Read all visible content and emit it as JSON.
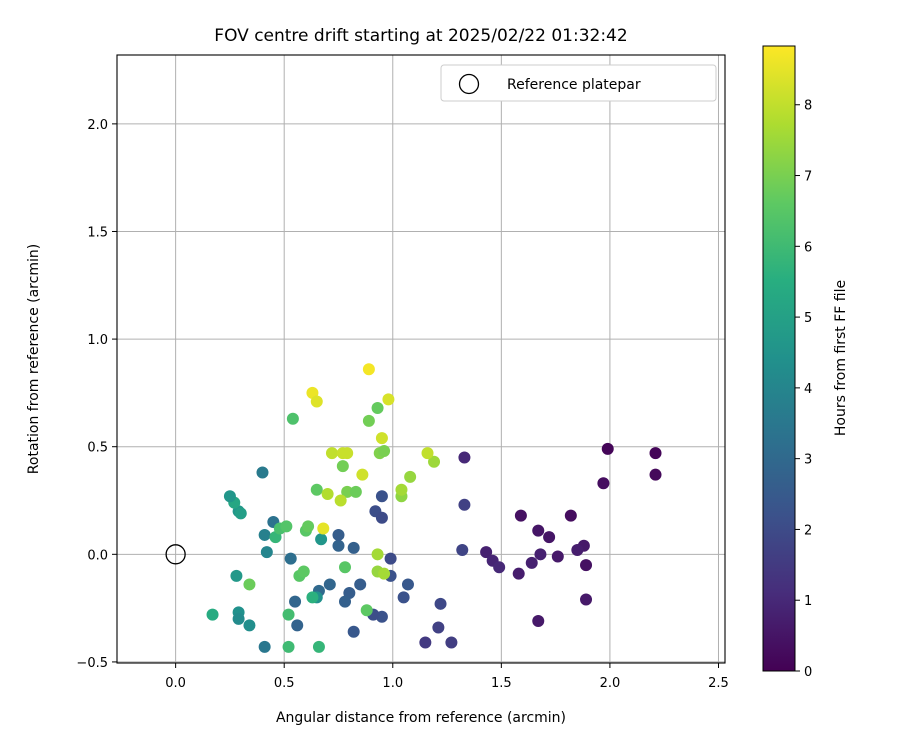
{
  "chart_data": {
    "type": "scatter",
    "title": "FOV centre drift starting at 2025/02/22 01:32:42",
    "xlabel": "Angular distance from reference (arcmin)",
    "ylabel": "Rotation from reference (arcmin)",
    "xlim": [
      -0.27,
      2.53
    ],
    "ylim": [
      -0.505,
      2.32
    ],
    "xticks": [
      0.0,
      0.5,
      1.0,
      1.5,
      2.0,
      2.5
    ],
    "xtick_labels": [
      "0.0",
      "0.5",
      "1.0",
      "1.5",
      "2.0",
      "2.5"
    ],
    "yticks": [
      -0.5,
      0.0,
      0.5,
      1.0,
      1.5,
      2.0
    ],
    "ytick_labels": [
      "−0.5",
      "0.0",
      "0.5",
      "1.0",
      "1.5",
      "2.0"
    ],
    "grid": true,
    "legend": {
      "placement": "top-right",
      "entries": [
        {
          "label": "Reference platepar",
          "marker": "open-circle"
        }
      ]
    },
    "reference_point": {
      "x": 0.0,
      "y": 0.0
    },
    "colorbar": {
      "label": "Hours from first FF file",
      "colormap": "viridis",
      "range": [
        0,
        8.83
      ],
      "ticks": [
        0,
        1,
        2,
        3,
        4,
        5,
        6,
        7,
        8
      ],
      "tick_labels": [
        "0",
        "1",
        "2",
        "3",
        "4",
        "5",
        "6",
        "7",
        "8"
      ]
    },
    "points": [
      {
        "x": 1.99,
        "y": 0.49,
        "c": 0.1
      },
      {
        "x": 2.21,
        "y": 0.47,
        "c": 0.1
      },
      {
        "x": 2.21,
        "y": 0.37,
        "c": 0.2
      },
      {
        "x": 1.97,
        "y": 0.33,
        "c": 0.3
      },
      {
        "x": 1.59,
        "y": 0.18,
        "c": 0.4
      },
      {
        "x": 1.82,
        "y": 0.18,
        "c": 0.3
      },
      {
        "x": 1.67,
        "y": 0.11,
        "c": 0.5
      },
      {
        "x": 1.72,
        "y": 0.08,
        "c": 0.5
      },
      {
        "x": 1.88,
        "y": 0.04,
        "c": 0.6
      },
      {
        "x": 1.85,
        "y": 0.02,
        "c": 0.7
      },
      {
        "x": 1.68,
        "y": 0.0,
        "c": 0.8
      },
      {
        "x": 1.76,
        "y": -0.01,
        "c": 0.6
      },
      {
        "x": 1.89,
        "y": -0.05,
        "c": 0.4
      },
      {
        "x": 1.64,
        "y": -0.04,
        "c": 0.8
      },
      {
        "x": 1.58,
        "y": -0.09,
        "c": 0.7
      },
      {
        "x": 1.89,
        "y": -0.21,
        "c": 0.6
      },
      {
        "x": 1.67,
        "y": -0.31,
        "c": 0.6
      },
      {
        "x": 1.43,
        "y": 0.01,
        "c": 0.8
      },
      {
        "x": 1.46,
        "y": -0.03,
        "c": 0.9
      },
      {
        "x": 1.49,
        "y": -0.06,
        "c": 1.0
      },
      {
        "x": 1.33,
        "y": 0.45,
        "c": 1.0
      },
      {
        "x": 1.33,
        "y": 0.23,
        "c": 1.7
      },
      {
        "x": 1.32,
        "y": 0.02,
        "c": 1.8
      },
      {
        "x": 1.22,
        "y": -0.23,
        "c": 1.9
      },
      {
        "x": 1.21,
        "y": -0.34,
        "c": 1.7
      },
      {
        "x": 1.15,
        "y": -0.41,
        "c": 1.5
      },
      {
        "x": 1.27,
        "y": -0.41,
        "c": 1.6
      },
      {
        "x": 1.07,
        "y": -0.14,
        "c": 2.4
      },
      {
        "x": 1.05,
        "y": -0.2,
        "c": 2.2
      },
      {
        "x": 0.99,
        "y": -0.1,
        "c": 2.2
      },
      {
        "x": 0.99,
        "y": -0.02,
        "c": 2.0
      },
      {
        "x": 0.95,
        "y": 0.27,
        "c": 2.2
      },
      {
        "x": 0.92,
        "y": 0.2,
        "c": 2.1
      },
      {
        "x": 0.95,
        "y": 0.17,
        "c": 2.0
      },
      {
        "x": 0.95,
        "y": -0.29,
        "c": 2.2
      },
      {
        "x": 0.91,
        "y": -0.28,
        "c": 2.1
      },
      {
        "x": 0.85,
        "y": -0.14,
        "c": 2.6
      },
      {
        "x": 0.82,
        "y": 0.03,
        "c": 2.7
      },
      {
        "x": 0.8,
        "y": -0.18,
        "c": 2.6
      },
      {
        "x": 0.82,
        "y": -0.36,
        "c": 2.4
      },
      {
        "x": 0.78,
        "y": -0.22,
        "c": 2.7
      },
      {
        "x": 0.75,
        "y": 0.04,
        "c": 2.8
      },
      {
        "x": 0.75,
        "y": 0.09,
        "c": 2.6
      },
      {
        "x": 0.71,
        "y": -0.14,
        "c": 2.9
      },
      {
        "x": 0.66,
        "y": -0.17,
        "c": 3.0
      },
      {
        "x": 0.55,
        "y": -0.22,
        "c": 2.9
      },
      {
        "x": 0.56,
        "y": -0.33,
        "c": 2.8
      },
      {
        "x": 0.53,
        "y": -0.02,
        "c": 3.2
      },
      {
        "x": 0.4,
        "y": 0.38,
        "c": 3.6
      },
      {
        "x": 0.45,
        "y": 0.15,
        "c": 3.3
      },
      {
        "x": 0.41,
        "y": 0.09,
        "c": 3.8
      },
      {
        "x": 0.42,
        "y": 0.01,
        "c": 4.0
      },
      {
        "x": 0.41,
        "y": -0.43,
        "c": 3.5
      },
      {
        "x": 0.34,
        "y": -0.33,
        "c": 4.3
      },
      {
        "x": 0.29,
        "y": -0.27,
        "c": 4.4
      },
      {
        "x": 0.29,
        "y": -0.3,
        "c": 4.2
      },
      {
        "x": 0.28,
        "y": -0.1,
        "c": 4.7
      },
      {
        "x": 0.29,
        "y": 0.2,
        "c": 4.6
      },
      {
        "x": 0.3,
        "y": 0.19,
        "c": 4.9
      },
      {
        "x": 0.27,
        "y": 0.24,
        "c": 5.2
      },
      {
        "x": 0.25,
        "y": 0.27,
        "c": 4.6
      },
      {
        "x": 0.17,
        "y": -0.28,
        "c": 5.4
      },
      {
        "x": 0.67,
        "y": 0.07,
        "c": 4.6
      },
      {
        "x": 0.65,
        "y": -0.2,
        "c": 4.4
      },
      {
        "x": 0.63,
        "y": -0.2,
        "c": 5.6
      },
      {
        "x": 0.66,
        "y": -0.43,
        "c": 5.8
      },
      {
        "x": 0.52,
        "y": -0.43,
        "c": 6.0
      },
      {
        "x": 0.52,
        "y": -0.28,
        "c": 6.1
      },
      {
        "x": 0.54,
        "y": 0.63,
        "c": 6.3
      },
      {
        "x": 0.46,
        "y": 0.08,
        "c": 5.8
      },
      {
        "x": 0.48,
        "y": 0.12,
        "c": 6.2
      },
      {
        "x": 0.51,
        "y": 0.13,
        "c": 6.4
      },
      {
        "x": 0.57,
        "y": -0.1,
        "c": 6.5
      },
      {
        "x": 0.59,
        "y": -0.08,
        "c": 6.6
      },
      {
        "x": 0.6,
        "y": 0.11,
        "c": 6.5
      },
      {
        "x": 0.61,
        "y": 0.13,
        "c": 6.7
      },
      {
        "x": 0.65,
        "y": 0.3,
        "c": 6.6
      },
      {
        "x": 0.34,
        "y": -0.14,
        "c": 6.8
      },
      {
        "x": 0.78,
        "y": -0.06,
        "c": 6.5
      },
      {
        "x": 0.77,
        "y": 0.41,
        "c": 6.9
      },
      {
        "x": 0.79,
        "y": 0.29,
        "c": 7.0
      },
      {
        "x": 0.83,
        "y": 0.29,
        "c": 6.8
      },
      {
        "x": 0.88,
        "y": -0.26,
        "c": 6.6
      },
      {
        "x": 0.89,
        "y": 0.62,
        "c": 6.9
      },
      {
        "x": 0.93,
        "y": 0.68,
        "c": 6.7
      },
      {
        "x": 0.94,
        "y": 0.47,
        "c": 7.1
      },
      {
        "x": 0.96,
        "y": 0.48,
        "c": 7.0
      },
      {
        "x": 0.93,
        "y": 0.0,
        "c": 7.6
      },
      {
        "x": 0.93,
        "y": -0.08,
        "c": 7.4
      },
      {
        "x": 0.96,
        "y": -0.09,
        "c": 7.6
      },
      {
        "x": 1.04,
        "y": 0.27,
        "c": 7.3
      },
      {
        "x": 1.04,
        "y": 0.3,
        "c": 7.6
      },
      {
        "x": 1.08,
        "y": 0.36,
        "c": 7.4
      },
      {
        "x": 1.19,
        "y": 0.43,
        "c": 7.5
      },
      {
        "x": 1.16,
        "y": 0.47,
        "c": 8.0
      },
      {
        "x": 0.7,
        "y": 0.28,
        "c": 7.8
      },
      {
        "x": 0.76,
        "y": 0.25,
        "c": 7.9
      },
      {
        "x": 0.72,
        "y": 0.47,
        "c": 8.0
      },
      {
        "x": 0.77,
        "y": 0.47,
        "c": 8.1
      },
      {
        "x": 0.79,
        "y": 0.47,
        "c": 8.1
      },
      {
        "x": 0.86,
        "y": 0.37,
        "c": 8.2
      },
      {
        "x": 0.95,
        "y": 0.54,
        "c": 8.2
      },
      {
        "x": 0.98,
        "y": 0.72,
        "c": 8.3
      },
      {
        "x": 0.63,
        "y": 0.75,
        "c": 8.6
      },
      {
        "x": 0.65,
        "y": 0.71,
        "c": 8.4
      },
      {
        "x": 0.89,
        "y": 0.86,
        "c": 8.7
      },
      {
        "x": 0.68,
        "y": 0.12,
        "c": 8.5
      }
    ]
  }
}
